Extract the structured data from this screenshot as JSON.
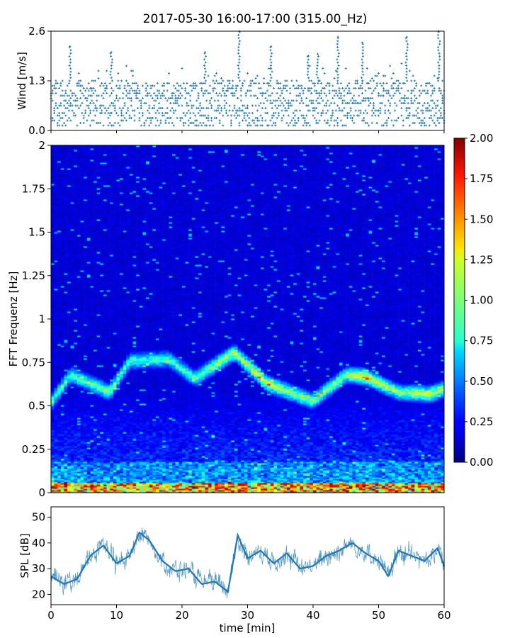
{
  "chart_data": [
    {
      "type": "scatter",
      "panel": "wind",
      "title": "2017-05-30 16:00-17:00 (315.00_Hz)",
      "xlabel": "",
      "ylabel": "Wind [m/s]",
      "xlim": [
        0,
        60
      ],
      "ylim": [
        0,
        2.6
      ],
      "yticks": [
        "0.0",
        "1.3",
        "2.6"
      ],
      "marker": "+",
      "color": "#1f77b4",
      "sample_step_min": 0.25,
      "typical_range": [
        0.1,
        1.3
      ],
      "peaks": [
        {
          "x": 2.9,
          "y": 2.2
        },
        {
          "x": 9.2,
          "y": 2.05
        },
        {
          "x": 23.5,
          "y": 2.05
        },
        {
          "x": 28.7,
          "y": 2.6
        },
        {
          "x": 33.6,
          "y": 2.2
        },
        {
          "x": 39.3,
          "y": 1.95
        },
        {
          "x": 40.7,
          "y": 2.0
        },
        {
          "x": 43.8,
          "y": 2.45
        },
        {
          "x": 47.5,
          "y": 2.3
        },
        {
          "x": 54.3,
          "y": 2.45
        },
        {
          "x": 59.2,
          "y": 2.6
        }
      ]
    },
    {
      "type": "heatmap",
      "panel": "spectrogram",
      "ylabel": "FFT Frequenz [Hz]",
      "xlim": [
        0,
        60
      ],
      "ylim": [
        0,
        2
      ],
      "yticks": [
        "0",
        "0.25",
        "0.5",
        "0.75",
        "1",
        "1.25",
        "1.5",
        "1.75",
        "2"
      ],
      "colormap": "jet",
      "colorbar": {
        "vmin": 0,
        "vmax": 2,
        "ticks": [
          "0.00",
          "0.25",
          "0.50",
          "0.75",
          "1.00",
          "1.25",
          "1.50",
          "1.75",
          "2.00"
        ]
      },
      "ridge": [
        {
          "x": 0,
          "y": 0.52,
          "v": 0.9
        },
        {
          "x": 3,
          "y": 0.68,
          "v": 0.95
        },
        {
          "x": 9,
          "y": 0.58,
          "v": 1.05
        },
        {
          "x": 12,
          "y": 0.76,
          "v": 0.85
        },
        {
          "x": 18,
          "y": 0.77,
          "v": 0.9
        },
        {
          "x": 22,
          "y": 0.66,
          "v": 0.95
        },
        {
          "x": 28,
          "y": 0.81,
          "v": 1.2
        },
        {
          "x": 33,
          "y": 0.63,
          "v": 1.3
        },
        {
          "x": 40,
          "y": 0.53,
          "v": 1.0
        },
        {
          "x": 45,
          "y": 0.68,
          "v": 1.1
        },
        {
          "x": 48,
          "y": 0.67,
          "v": 1.5
        },
        {
          "x": 53,
          "y": 0.58,
          "v": 1.05
        },
        {
          "x": 58,
          "y": 0.57,
          "v": 1.3
        },
        {
          "x": 60,
          "y": 0.6,
          "v": 1.1
        }
      ],
      "low_frequency_band": {
        "y_range": [
          0,
          0.06
        ],
        "v_range": [
          1.3,
          2.0
        ]
      }
    },
    {
      "type": "line",
      "panel": "spl",
      "xlabel": "time [min]",
      "ylabel": "SPL [dB]",
      "xlim": [
        0,
        60
      ],
      "ylim": [
        16,
        54
      ],
      "xticks": [
        "0",
        "10",
        "20",
        "30",
        "40",
        "50",
        "60"
      ],
      "yticks": [
        "20",
        "30",
        "40",
        "50"
      ],
      "color": "#1f77b4",
      "x": [
        0,
        2,
        4,
        6,
        8,
        10,
        12,
        13.5,
        15,
        17,
        19,
        21,
        23,
        25,
        27,
        28.5,
        30,
        32,
        34,
        36,
        38,
        40,
        42,
        44,
        46,
        48,
        50,
        51.5,
        53,
        55,
        57,
        59,
        60
      ],
      "y": [
        27,
        24,
        26,
        35,
        39,
        32,
        35,
        44,
        41,
        33,
        29,
        30,
        24,
        25,
        21,
        43,
        34,
        37,
        32,
        36,
        30,
        31,
        35,
        37,
        40,
        36,
        33,
        27,
        37,
        35,
        33,
        38,
        31
      ]
    }
  ]
}
